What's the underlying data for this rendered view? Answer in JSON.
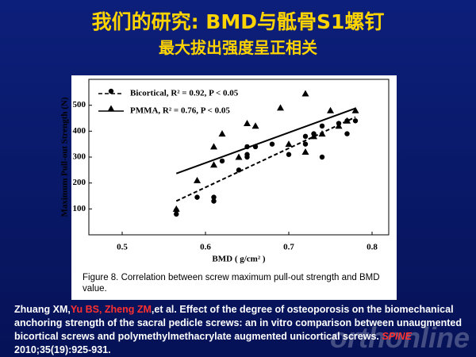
{
  "slide": {
    "title_line1": "我们的研究: BMD与骶骨S1螺钉",
    "title_line2": "最大拔出强度呈正相关",
    "caption": "Figure 8. Correlation between screw maximum pull-out strength and BMD value.",
    "citation": [
      {
        "text": "Zhuang XM,",
        "color": "#ffffff",
        "italic": false
      },
      {
        "text": "Yu BS, Zheng  ZM",
        "color": "#ff3030",
        "italic": false
      },
      {
        "text": ",et al. Effect of the degree of osteoporosis on the biomechanical anchoring strength of the sacral pedicle screws: an in vitro comparison between unaugmented bicortical screws and polymethylmethacrylate  augmented unicortical screws. ",
        "color": "#ffffff",
        "italic": false
      },
      {
        "text": "SPINE",
        "color": "#ff3030",
        "italic": true
      },
      {
        "text": "  2010;35(19):925-931.",
        "color": "#ffffff",
        "italic": false
      }
    ],
    "watermark": "orthonline"
  },
  "chart_data": {
    "type": "scatter",
    "x_label": "BMD ( g/cm² )",
    "y_label": "Maximum Pull-out Strength (N)",
    "xlim": [
      0.46,
      0.82
    ],
    "ylim": [
      0,
      600
    ],
    "xticks": [
      {
        "value": 0.5,
        "label": "0.5"
      },
      {
        "value": 0.6,
        "label": "0.6"
      },
      {
        "value": 0.7,
        "label": "0.7"
      },
      {
        "value": 0.8,
        "label": "0.8"
      }
    ],
    "yticks": [
      100,
      200,
      300,
      400,
      500
    ],
    "trendline": true,
    "legend": "upper left",
    "series": [
      {
        "name": "Bicortical, R² = 0.92, P < 0.05",
        "color": "#000000",
        "marker": "circle",
        "line_style": "dashed",
        "x": [
          0.565,
          0.565,
          0.59,
          0.61,
          0.61,
          0.62,
          0.64,
          0.65,
          0.65,
          0.65,
          0.66,
          0.68,
          0.7,
          0.72,
          0.72,
          0.73,
          0.74,
          0.74,
          0.76,
          0.77,
          0.77,
          0.78
        ],
        "values": [
          80,
          95,
          145,
          130,
          145,
          285,
          250,
          300,
          310,
          340,
          340,
          350,
          310,
          350,
          380,
          390,
          300,
          420,
          430,
          390,
          440,
          440
        ]
      },
      {
        "name": "PMMA, R² = 0.76, P < 0.05",
        "color": "#000000",
        "marker": "triangle",
        "line_style": "solid",
        "x": [
          0.565,
          0.59,
          0.61,
          0.61,
          0.62,
          0.64,
          0.65,
          0.66,
          0.69,
          0.7,
          0.72,
          0.72,
          0.73,
          0.74,
          0.75,
          0.76,
          0.77,
          0.78
        ],
        "values": [
          100,
          210,
          270,
          340,
          390,
          300,
          430,
          420,
          490,
          350,
          545,
          320,
          380,
          390,
          480,
          420,
          440,
          480
        ]
      }
    ]
  }
}
